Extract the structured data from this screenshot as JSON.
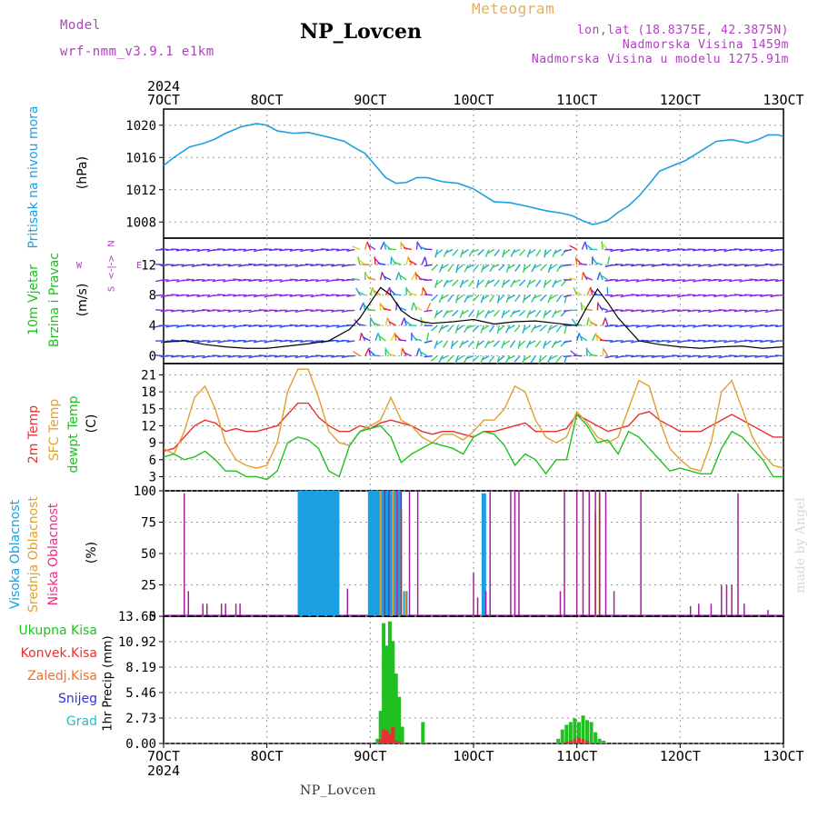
{
  "header": {
    "model_label": "Model",
    "model_name": "wrf-nmm_v3.9.1  e1km",
    "title": "NP_Lovcen",
    "meteogram_label": "Meteogram",
    "lonlat": "lon,lat (18.8375E, 42.3875N)",
    "altitude": "Nadmorska Visina 1459m",
    "model_altitude": "Nadmorska Visina u modelu 1275.91m",
    "footer_name": "NP_Lovcen",
    "watermark": "made by Angel"
  },
  "colors": {
    "pressure": "#1ea0e0",
    "wind_speed": "#000000",
    "temp2m": "#e83030",
    "sfc_temp": "#e0a030",
    "dewpt": "#20c020",
    "high_cloud": "#1aa0e0",
    "mid_cloud": "#e0a030",
    "low_cloud": "#a0209a",
    "total_precip": "#20c020",
    "conv_precip": "#e83030",
    "frozen": "#f07030",
    "snow": "#3030e0",
    "hail": "#20c0c0",
    "header_purple": "#b040c0",
    "header_orange": "#e0b060"
  },
  "chart_data": [
    {
      "type": "line",
      "name": "pressure",
      "ylabel_lines": [
        "Pritisak na nivou mora",
        "(hPa)"
      ],
      "ylim": [
        1006,
        1022
      ],
      "yticks": [
        1008,
        1012,
        1016,
        1020
      ],
      "xlim": [
        0,
        6
      ],
      "x_tick_labels": [
        "7OCT",
        "8OCT",
        "9OCT",
        "10OCT",
        "11OCT",
        "12OCT",
        "13OCT"
      ],
      "x_year_label": "2024",
      "grid": true,
      "series": [
        {
          "x": [
            0,
            0.1,
            0.25,
            0.4,
            0.5,
            0.6,
            0.75,
            0.9,
            1.0,
            1.1,
            1.25,
            1.4,
            1.5,
            1.6,
            1.75,
            1.85,
            1.95,
            2.05,
            2.15,
            2.25,
            2.35,
            2.45,
            2.55,
            2.7,
            2.85,
            3.0,
            3.1,
            3.2,
            3.35,
            3.5,
            3.6,
            3.7,
            3.85,
            3.95,
            4.05,
            4.15,
            4.2,
            4.3,
            4.4,
            4.5,
            4.6,
            4.7,
            4.8,
            4.95,
            5.05,
            5.2,
            5.35,
            5.5,
            5.65,
            5.75,
            5.85,
            5.95,
            6.0
          ],
          "y": [
            1015.0,
            1016.0,
            1017.3,
            1017.8,
            1018.3,
            1019.0,
            1019.8,
            1020.2,
            1020.0,
            1019.3,
            1019.0,
            1019.1,
            1018.8,
            1018.5,
            1018.0,
            1017.2,
            1016.5,
            1015.0,
            1013.5,
            1012.8,
            1012.9,
            1013.5,
            1013.5,
            1013.0,
            1012.8,
            1012.1,
            1011.3,
            1010.5,
            1010.4,
            1010.0,
            1009.7,
            1009.4,
            1009.1,
            1008.8,
            1008.2,
            1007.7,
            1007.8,
            1008.2,
            1009.2,
            1010.0,
            1011.2,
            1012.7,
            1014.3,
            1015.1,
            1015.6,
            1016.8,
            1018.0,
            1018.2,
            1017.8,
            1018.2,
            1018.8,
            1018.8,
            1018.6
          ]
        }
      ]
    },
    {
      "type": "line",
      "name": "wind",
      "ylabel_lines": [
        "10m Vjetar",
        "Brzina i Pravac",
        "(m/s)"
      ],
      "direction_legend": [
        "N",
        "<-|->",
        "W",
        "E",
        "S"
      ],
      "ylim": [
        -1,
        15.5
      ],
      "yticks": [
        0,
        4,
        8,
        12
      ],
      "grid": true,
      "series": [
        {
          "name": "speed",
          "x": [
            0,
            0.2,
            0.4,
            0.6,
            0.8,
            1.0,
            1.2,
            1.4,
            1.6,
            1.8,
            1.9,
            2.0,
            2.1,
            2.2,
            2.3,
            2.4,
            2.5,
            2.6,
            2.8,
            3.0,
            3.2,
            3.4,
            3.6,
            3.8,
            4.0,
            4.1,
            4.2,
            4.3,
            4.4,
            4.5,
            4.6,
            4.8,
            5.0,
            5.2,
            5.4,
            5.6,
            5.8,
            6.0
          ],
          "y": [
            1.8,
            2.0,
            1.5,
            1.2,
            1.0,
            1.0,
            1.3,
            1.6,
            2.0,
            3.5,
            5.0,
            7.0,
            9.0,
            8.0,
            6.0,
            5.0,
            4.5,
            4.3,
            4.5,
            4.8,
            4.2,
            4.5,
            4.6,
            4.3,
            4.0,
            6.5,
            8.8,
            7.0,
            5.0,
            3.5,
            2.0,
            1.5,
            1.2,
            1.0,
            1.2,
            1.3,
            1.0,
            1.2
          ]
        }
      ]
    },
    {
      "type": "line",
      "name": "temperature",
      "ylabel_lines": [
        "2m Temp",
        "SFC Temp",
        "dewpt Temp",
        "(C)"
      ],
      "ylim": [
        0.5,
        23
      ],
      "yticks": [
        3,
        6,
        9,
        12,
        15,
        18,
        21
      ],
      "grid": true,
      "series": [
        {
          "name": "2m Temp",
          "x": [
            0,
            0.1,
            0.2,
            0.3,
            0.4,
            0.5,
            0.6,
            0.7,
            0.8,
            0.9,
            1.0,
            1.1,
            1.2,
            1.3,
            1.4,
            1.5,
            1.6,
            1.7,
            1.8,
            1.9,
            2.0,
            2.1,
            2.2,
            2.3,
            2.4,
            2.5,
            2.6,
            2.7,
            2.8,
            2.9,
            3.0,
            3.1,
            3.2,
            3.3,
            3.4,
            3.5,
            3.6,
            3.7,
            3.8,
            3.9,
            4.0,
            4.1,
            4.2,
            4.3,
            4.4,
            4.5,
            4.6,
            4.7,
            4.8,
            4.9,
            5.0,
            5.1,
            5.2,
            5.3,
            5.4,
            5.5,
            5.6,
            5.7,
            5.8,
            5.9,
            6.0
          ],
          "y": [
            7.5,
            8.0,
            10.0,
            12.0,
            13.0,
            12.5,
            11.0,
            11.5,
            11.0,
            11.0,
            11.5,
            12.0,
            14.0,
            16.0,
            16.0,
            13.5,
            12.0,
            11.0,
            11.0,
            12.0,
            11.5,
            12.5,
            13.0,
            12.5,
            12.0,
            11.0,
            10.5,
            11.0,
            11.0,
            10.5,
            10.0,
            11.0,
            11.0,
            11.5,
            12.0,
            12.5,
            11.0,
            11.0,
            11.0,
            11.5,
            14.0,
            13.0,
            12.0,
            11.0,
            11.5,
            12.0,
            14.0,
            14.5,
            13.0,
            12.0,
            11.0,
            11.0,
            11.0,
            12.0,
            13.0,
            14.0,
            13.0,
            12.0,
            11.0,
            10.0,
            10.0
          ]
        },
        {
          "name": "SFC Temp",
          "x": [
            0,
            0.1,
            0.2,
            0.3,
            0.4,
            0.5,
            0.6,
            0.7,
            0.8,
            0.9,
            1.0,
            1.1,
            1.2,
            1.3,
            1.4,
            1.5,
            1.6,
            1.7,
            1.8,
            1.9,
            2.0,
            2.1,
            2.2,
            2.3,
            2.4,
            2.5,
            2.6,
            2.7,
            2.8,
            2.9,
            3.0,
            3.1,
            3.2,
            3.3,
            3.4,
            3.5,
            3.6,
            3.7,
            3.8,
            3.9,
            4.0,
            4.1,
            4.2,
            4.3,
            4.4,
            4.5,
            4.6,
            4.7,
            4.8,
            4.9,
            5.0,
            5.1,
            5.2,
            5.3,
            5.4,
            5.5,
            5.6,
            5.7,
            5.8,
            5.9,
            6.0
          ],
          "y": [
            8.0,
            7.0,
            11.0,
            17.0,
            19.0,
            15.0,
            9.0,
            6.0,
            5.0,
            4.5,
            5.0,
            9.0,
            18.0,
            22.0,
            22.0,
            17.0,
            11.0,
            9.0,
            8.5,
            11.0,
            12.0,
            13.0,
            17.0,
            13.0,
            12.0,
            10.0,
            9.0,
            10.5,
            10.5,
            9.5,
            11.0,
            13.0,
            13.0,
            15.0,
            19.0,
            18.0,
            13.0,
            10.0,
            9.0,
            10.0,
            14.5,
            12.5,
            10.0,
            9.0,
            10.0,
            15.0,
            20.0,
            19.0,
            13.0,
            8.0,
            6.0,
            4.5,
            4.0,
            9.0,
            18.0,
            20.0,
            15.0,
            10.0,
            7.0,
            5.0,
            4.5
          ]
        },
        {
          "name": "dewpt Temp",
          "x": [
            0,
            0.1,
            0.2,
            0.3,
            0.4,
            0.5,
            0.6,
            0.7,
            0.8,
            0.9,
            1.0,
            1.1,
            1.2,
            1.3,
            1.4,
            1.5,
            1.6,
            1.7,
            1.8,
            1.9,
            2.0,
            2.1,
            2.2,
            2.3,
            2.4,
            2.5,
            2.6,
            2.7,
            2.8,
            2.9,
            3.0,
            3.1,
            3.2,
            3.3,
            3.4,
            3.5,
            3.6,
            3.7,
            3.8,
            3.9,
            4.0,
            4.1,
            4.2,
            4.3,
            4.4,
            4.5,
            4.6,
            4.7,
            4.8,
            4.9,
            5.0,
            5.1,
            5.2,
            5.3,
            5.4,
            5.5,
            5.6,
            5.7,
            5.8,
            5.9,
            6.0
          ],
          "y": [
            6.5,
            7.0,
            6.0,
            6.5,
            7.5,
            6.0,
            4.0,
            4.0,
            3.0,
            3.0,
            2.5,
            4.0,
            9.0,
            10.0,
            9.5,
            8.0,
            4.0,
            3.0,
            8.5,
            11.0,
            11.5,
            12.0,
            10.0,
            5.5,
            7.0,
            8.0,
            9.0,
            8.5,
            8.0,
            7.0,
            10.0,
            11.0,
            10.5,
            8.5,
            5.0,
            7.0,
            6.0,
            3.5,
            6.0,
            6.0,
            14.0,
            12.0,
            9.0,
            9.5,
            7.0,
            11.0,
            10.0,
            8.0,
            6.0,
            4.0,
            4.5,
            4.0,
            3.5,
            3.5,
            8.0,
            11.0,
            10.0,
            8.0,
            6.0,
            3.0,
            3.0
          ]
        }
      ]
    },
    {
      "type": "bar",
      "name": "cloud",
      "ylabel_lines": [
        "Visoka Oblacnost",
        "Srednja Oblacnost",
        "Niska Oblacnost",
        "(%)"
      ],
      "ylim": [
        0,
        100
      ],
      "yticks": [
        0,
        25,
        50,
        75,
        100
      ],
      "grid": true,
      "series": [
        {
          "name": "Visoka Oblacnost",
          "x": [
            1.32,
            1.36,
            1.4,
            1.44,
            1.48,
            1.52,
            1.56,
            1.6,
            1.64,
            1.68,
            2.0,
            2.04,
            2.08,
            2.12,
            2.16,
            2.2,
            2.24,
            2.28,
            2.34,
            3.1
          ],
          "values": [
            100,
            100,
            100,
            100,
            100,
            100,
            100,
            100,
            100,
            100,
            100,
            100,
            100,
            100,
            100,
            100,
            100,
            100,
            20,
            98
          ]
        },
        {
          "name": "Srednja Oblacnost",
          "x": [
            2.1,
            2.22,
            2.26,
            2.3,
            2.34,
            4.18,
            4.22
          ],
          "values": [
            100,
            100,
            100,
            85,
            20,
            82,
            98
          ]
        },
        {
          "name": "Niska Oblacnost",
          "x": [
            0.2,
            0.24,
            0.38,
            0.42,
            0.56,
            0.6,
            0.7,
            0.74,
            1.78,
            2.14,
            2.18,
            2.26,
            2.3,
            2.38,
            2.46,
            3.0,
            3.04,
            3.12,
            3.16,
            3.36,
            3.4,
            3.44,
            3.84,
            3.88,
            4.0,
            4.06,
            4.12,
            4.18,
            4.22,
            4.28,
            4.36,
            4.62,
            5.1,
            5.18,
            5.3,
            5.4,
            5.45,
            5.5,
            5.56,
            5.62,
            5.85
          ],
          "values": [
            98,
            20,
            10,
            10,
            10,
            10,
            10,
            10,
            22,
            100,
            100,
            100,
            100,
            100,
            100,
            35,
            15,
            20,
            100,
            100,
            100,
            100,
            20,
            100,
            100,
            100,
            100,
            100,
            100,
            100,
            20,
            100,
            8,
            10,
            10,
            25,
            25,
            25,
            98,
            10,
            5
          ]
        }
      ]
    },
    {
      "type": "bar",
      "name": "precip",
      "ylabel_lines": [
        "1hr Precip (mm)"
      ],
      "legend": [
        "Ukupna Kisa",
        "Konvek.Kisa",
        "Zaledj.Kisa",
        "Snijeg",
        "Grad"
      ],
      "ylim": [
        0,
        13.65
      ],
      "yticks": [
        0,
        2.73,
        5.46,
        8.19,
        10.92,
        13.65
      ],
      "grid": true,
      "series": [
        {
          "name": "Ukupna Kisa",
          "x": [
            2.07,
            2.1,
            2.13,
            2.16,
            2.19,
            2.22,
            2.25,
            2.28,
            2.31,
            2.51,
            3.82,
            3.86,
            3.9,
            3.94,
            3.98,
            4.02,
            4.06,
            4.1,
            4.14,
            4.18,
            4.22,
            4.26
          ],
          "values": [
            0.5,
            3.5,
            12.9,
            10.5,
            13.1,
            11.0,
            7.5,
            5.0,
            1.8,
            2.3,
            0.5,
            1.5,
            2.0,
            2.3,
            2.7,
            2.3,
            3.0,
            2.5,
            2.3,
            1.2,
            0.5,
            0.3
          ]
        },
        {
          "name": "Konvek.Kisa",
          "x": [
            2.1,
            2.13,
            2.16,
            2.19,
            2.22,
            2.25,
            2.28,
            3.9,
            3.94,
            3.98,
            4.02,
            4.06,
            4.1
          ],
          "values": [
            0.4,
            1.5,
            1.4,
            1.0,
            1.8,
            0.3,
            0.2,
            0.2,
            0.3,
            0.5,
            0.6,
            0.5,
            0.3
          ]
        }
      ]
    }
  ]
}
